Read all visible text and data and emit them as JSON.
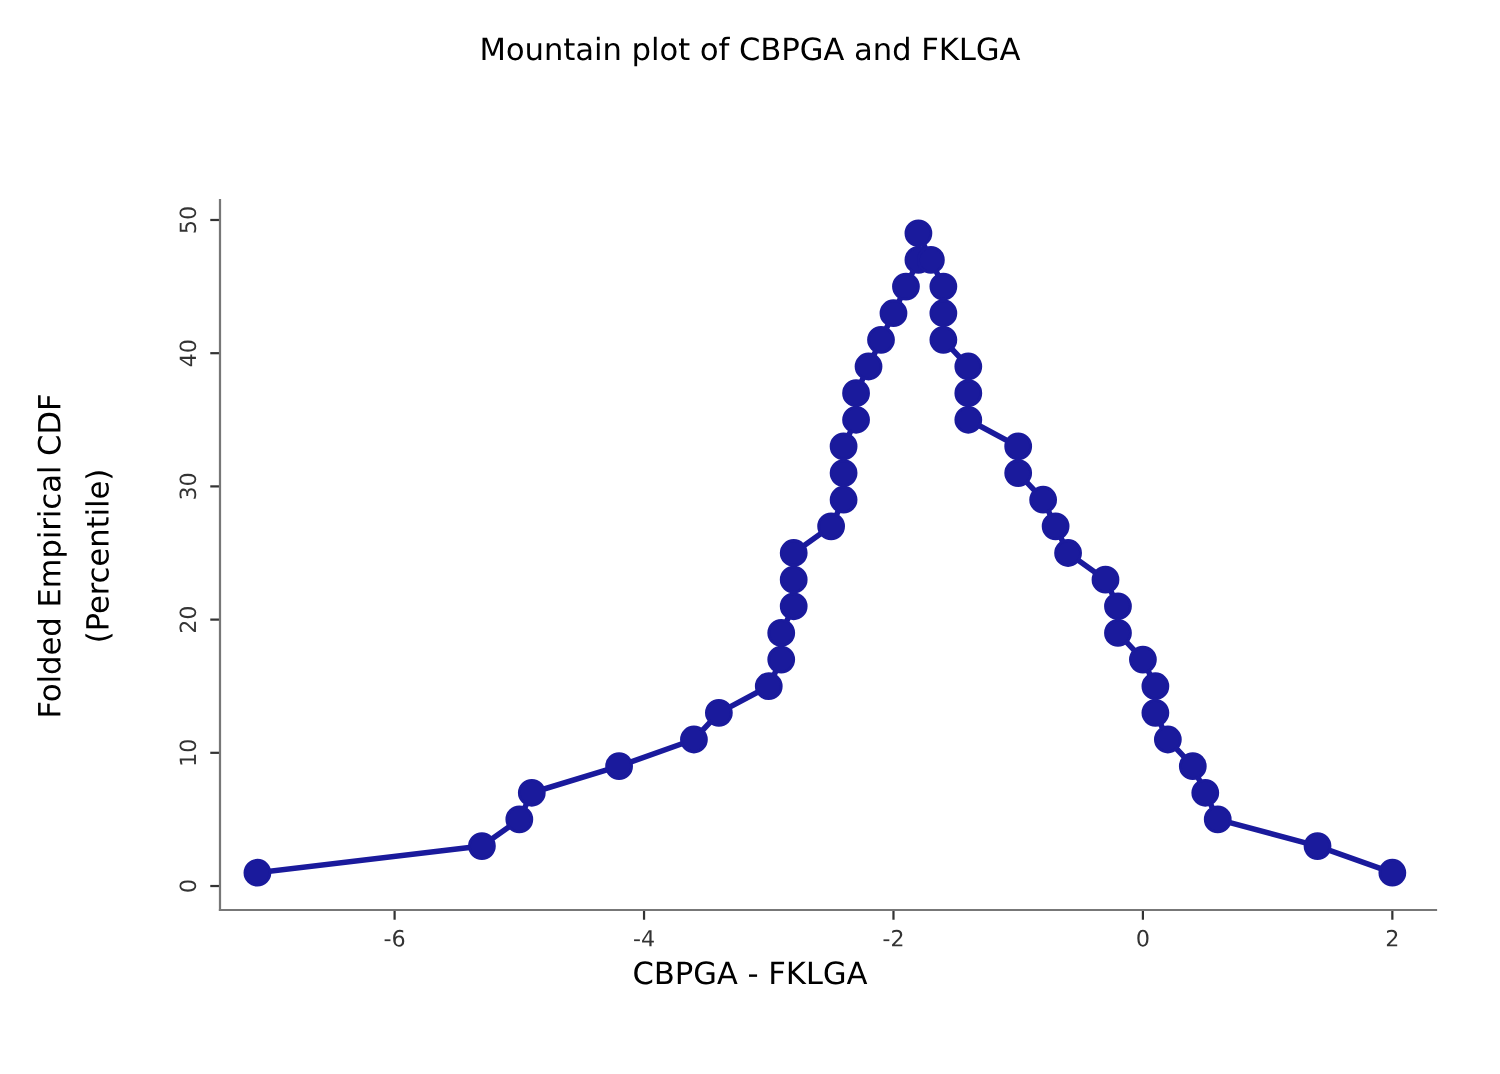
{
  "chart_data": {
    "type": "line",
    "title": "Mountain plot of CBPGA and FKLGA",
    "xlabel": "CBPGA - FKLGA",
    "ylabel": "Folded Empirical CDF\n(Percentile)",
    "series": [
      {
        "color": "#1a1a9c",
        "x": [
          -7.1,
          -5.3,
          -5.0,
          -4.9,
          -4.2,
          -3.6,
          -3.4,
          -3.0,
          -2.9,
          -2.9,
          -2.8,
          -2.8,
          -2.8,
          -2.5,
          -2.4,
          -2.4,
          -2.4,
          -2.3,
          -2.3,
          -2.2,
          -2.1,
          -2.0,
          -1.9,
          -1.8,
          -1.8,
          -1.7,
          -1.6,
          -1.6,
          -1.6,
          -1.4,
          -1.4,
          -1.4,
          -1.0,
          -1.0,
          -0.8,
          -0.7,
          -0.6,
          -0.3,
          -0.2,
          -0.2,
          0.0,
          0.1,
          0.1,
          0.2,
          0.4,
          0.5,
          0.6,
          1.4,
          2.0
        ],
        "values": [
          1,
          3,
          5,
          7,
          9,
          11,
          13,
          15,
          17,
          19,
          21,
          23,
          25,
          27,
          29,
          31,
          33,
          35,
          37,
          39,
          41,
          43,
          45,
          47,
          49,
          47,
          45,
          43,
          41,
          39,
          37,
          35,
          33,
          31,
          29,
          27,
          25,
          23,
          21,
          19,
          17,
          15,
          13,
          11,
          9,
          7,
          5,
          3,
          1
        ]
      }
    ],
    "xlim": [
      -7.4,
      2.35
    ],
    "ylim": [
      -1.8,
      51.5
    ],
    "xticks": [
      -6,
      -4,
      -2,
      0,
      2
    ],
    "yticks": [
      0,
      10,
      20,
      30,
      40,
      50
    ],
    "marker": "circle",
    "line_style": "solid",
    "grid": false,
    "legend": false
  }
}
